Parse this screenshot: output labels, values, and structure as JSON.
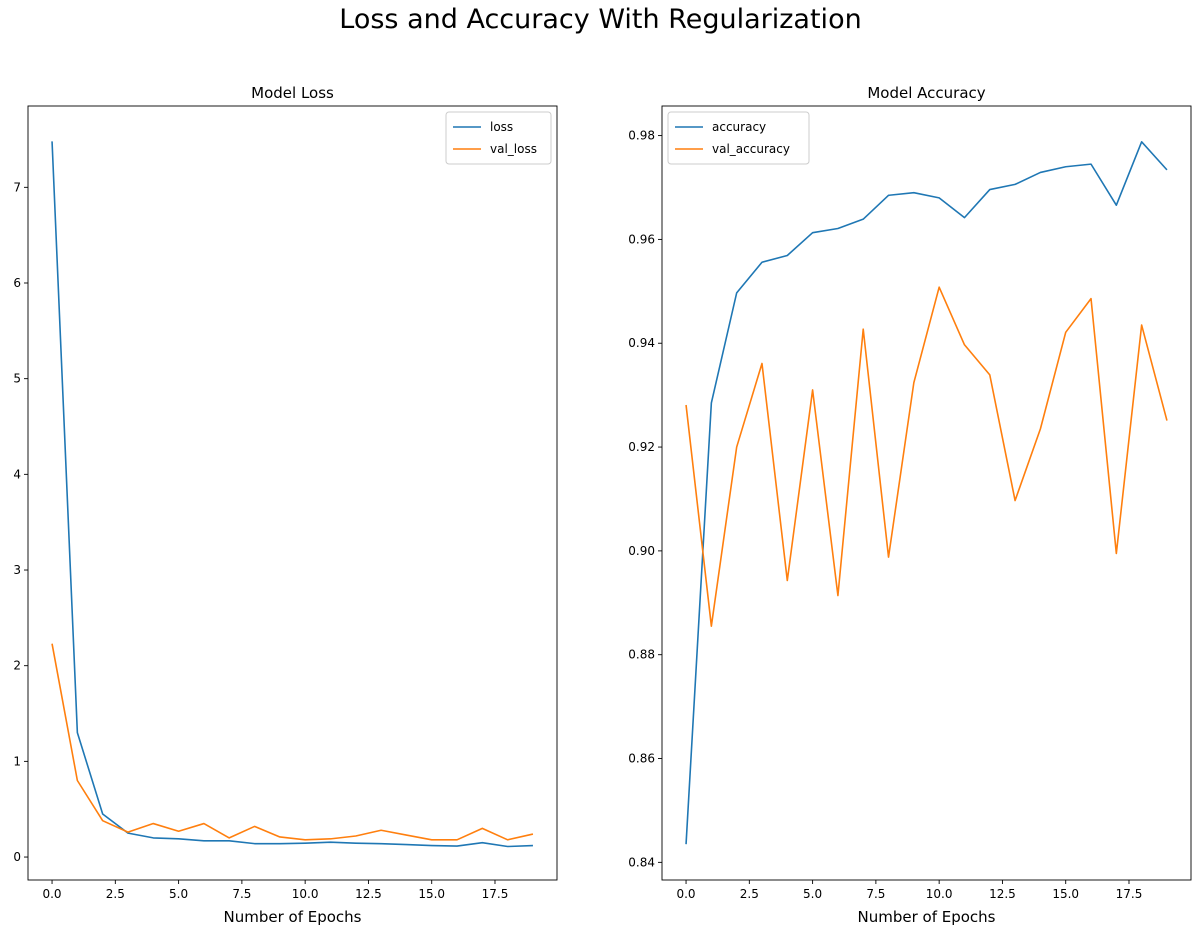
{
  "figure": {
    "title": "Loss and Accuracy With Regularization"
  },
  "chart_data": [
    {
      "type": "line",
      "title": "Model Loss",
      "xlabel": "Number of Epochs",
      "ylabel": "",
      "xlim": [
        -0.95,
        19.95
      ],
      "ylim": [
        -0.24,
        7.85
      ],
      "xticks": [
        0,
        2.5,
        5,
        7.5,
        10,
        12.5,
        15,
        17.5
      ],
      "xtick_labels": [
        "0.0",
        "2.5",
        "5.0",
        "7.5",
        "10.0",
        "12.5",
        "15.0",
        "17.5"
      ],
      "yticks": [
        0,
        1,
        2,
        3,
        4,
        5,
        6,
        7
      ],
      "ytick_labels": [
        "0",
        "1",
        "2",
        "3",
        "4",
        "5",
        "6",
        "7"
      ],
      "legend": "top-right",
      "grid": false,
      "x": [
        0,
        1,
        2,
        3,
        4,
        5,
        6,
        7,
        8,
        9,
        10,
        11,
        12,
        13,
        14,
        15,
        16,
        17,
        18,
        19
      ],
      "series": [
        {
          "name": "loss",
          "color": "#1f77b4",
          "values": [
            7.48,
            1.3,
            0.45,
            0.25,
            0.2,
            0.19,
            0.17,
            0.17,
            0.14,
            0.14,
            0.145,
            0.155,
            0.145,
            0.14,
            0.13,
            0.12,
            0.115,
            0.15,
            0.11,
            0.12
          ]
        },
        {
          "name": "val_loss",
          "color": "#ff7f0e",
          "values": [
            2.23,
            0.8,
            0.38,
            0.26,
            0.35,
            0.27,
            0.35,
            0.2,
            0.32,
            0.21,
            0.18,
            0.19,
            0.22,
            0.28,
            0.23,
            0.18,
            0.18,
            0.3,
            0.18,
            0.24
          ]
        }
      ]
    },
    {
      "type": "line",
      "title": "Model Accuracy",
      "xlabel": "Number of Epochs",
      "ylabel": "",
      "xlim": [
        -0.95,
        19.95
      ],
      "ylim": [
        0.8366,
        0.9857
      ],
      "xticks": [
        0,
        2.5,
        5,
        7.5,
        10,
        12.5,
        15,
        17.5
      ],
      "xtick_labels": [
        "0.0",
        "2.5",
        "5.0",
        "7.5",
        "10.0",
        "12.5",
        "15.0",
        "17.5"
      ],
      "yticks": [
        0.84,
        0.86,
        0.88,
        0.9,
        0.92,
        0.94,
        0.96,
        0.98
      ],
      "ytick_labels": [
        "0.84",
        "0.86",
        "0.88",
        "0.90",
        "0.92",
        "0.94",
        "0.96",
        "0.98"
      ],
      "legend": "top-left",
      "grid": false,
      "x": [
        0,
        1,
        2,
        3,
        4,
        5,
        6,
        7,
        8,
        9,
        10,
        11,
        12,
        13,
        14,
        15,
        16,
        17,
        18,
        19
      ],
      "series": [
        {
          "name": "accuracy",
          "color": "#1f77b4",
          "values": [
            0.8435,
            0.9285,
            0.9497,
            0.9556,
            0.9569,
            0.9613,
            0.9621,
            0.9639,
            0.9685,
            0.969,
            0.968,
            0.9642,
            0.9696,
            0.9706,
            0.9729,
            0.974,
            0.9745,
            0.9666,
            0.9788,
            0.9734
          ]
        },
        {
          "name": "val_accuracy",
          "color": "#ff7f0e",
          "values": [
            0.9281,
            0.8855,
            0.92,
            0.9361,
            0.8943,
            0.931,
            0.8914,
            0.9427,
            0.8988,
            0.9324,
            0.9508,
            0.9397,
            0.9339,
            0.9097,
            0.9235,
            0.9421,
            0.9486,
            0.8995,
            0.9435,
            0.9251
          ]
        }
      ]
    }
  ]
}
